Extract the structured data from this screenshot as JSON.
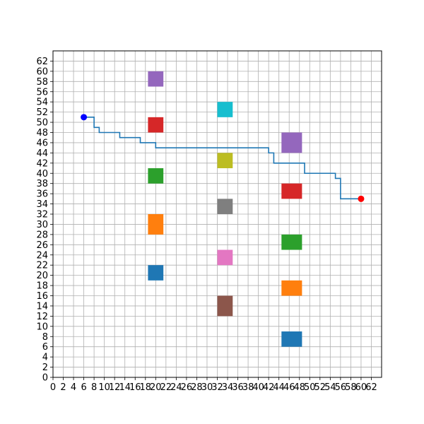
{
  "chart_data": {
    "type": "scatter",
    "title": "",
    "xlabel": "",
    "ylabel": "",
    "xlim": [
      0,
      64
    ],
    "ylim": [
      0,
      64
    ],
    "grid": true,
    "x_ticks": [
      0,
      2,
      4,
      6,
      8,
      10,
      12,
      14,
      16,
      18,
      20,
      22,
      24,
      26,
      28,
      30,
      32,
      34,
      36,
      38,
      40,
      42,
      44,
      46,
      48,
      50,
      52,
      54,
      56,
      58,
      60,
      62
    ],
    "y_ticks": [
      0,
      2,
      4,
      6,
      8,
      10,
      12,
      14,
      16,
      18,
      20,
      22,
      24,
      26,
      28,
      30,
      32,
      34,
      36,
      38,
      40,
      42,
      44,
      46,
      48,
      50,
      52,
      54,
      56,
      58,
      60,
      62
    ],
    "obstacles": [
      {
        "x": 20,
        "y": 58.5,
        "w": 3,
        "h": 3,
        "color": "#9467bd"
      },
      {
        "x": 20,
        "y": 49.5,
        "w": 3,
        "h": 3,
        "color": "#d62728"
      },
      {
        "x": 20,
        "y": 39.5,
        "w": 3,
        "h": 3,
        "color": "#2ca02c"
      },
      {
        "x": 20,
        "y": 30,
        "w": 3,
        "h": 4,
        "color": "#ff7f0e"
      },
      {
        "x": 20,
        "y": 20.5,
        "w": 3,
        "h": 3,
        "color": "#1f77b4"
      },
      {
        "x": 33.5,
        "y": 52.5,
        "w": 3,
        "h": 3,
        "color": "#17becf"
      },
      {
        "x": 33.5,
        "y": 42.5,
        "w": 3,
        "h": 3,
        "color": "#bcbd22"
      },
      {
        "x": 33.5,
        "y": 33.5,
        "w": 3,
        "h": 3,
        "color": "#7f7f7f"
      },
      {
        "x": 33.5,
        "y": 23.5,
        "w": 3,
        "h": 3,
        "color": "#e377c2"
      },
      {
        "x": 33.5,
        "y": 14,
        "w": 3,
        "h": 4,
        "color": "#8c564b"
      },
      {
        "x": 46.5,
        "y": 46,
        "w": 4,
        "h": 4,
        "color": "#9467bd"
      },
      {
        "x": 46.5,
        "y": 36.5,
        "w": 4,
        "h": 3,
        "color": "#d62728"
      },
      {
        "x": 46.5,
        "y": 26.5,
        "w": 4,
        "h": 3,
        "color": "#2ca02c"
      },
      {
        "x": 46.5,
        "y": 17.5,
        "w": 4,
        "h": 3,
        "color": "#ff7f0e"
      },
      {
        "x": 46.5,
        "y": 7.5,
        "w": 4,
        "h": 3,
        "color": "#1f77b4"
      }
    ],
    "path": {
      "color": "#1f77b4",
      "points": [
        [
          6,
          51
        ],
        [
          8,
          51
        ],
        [
          8,
          49
        ],
        [
          9,
          49
        ],
        [
          9,
          48
        ],
        [
          13,
          48
        ],
        [
          13,
          47
        ],
        [
          17,
          47
        ],
        [
          17,
          46
        ],
        [
          20,
          46
        ],
        [
          20,
          45
        ],
        [
          42,
          45
        ],
        [
          42,
          44
        ],
        [
          43,
          44
        ],
        [
          43,
          42
        ],
        [
          49,
          42
        ],
        [
          49,
          40
        ],
        [
          55,
          40
        ],
        [
          55,
          39
        ],
        [
          56,
          39
        ],
        [
          56,
          35
        ],
        [
          60,
          35
        ]
      ]
    },
    "start": {
      "x": 6,
      "y": 51,
      "color": "#0000ff"
    },
    "goal": {
      "x": 60,
      "y": 35,
      "color": "#ff0000"
    }
  }
}
